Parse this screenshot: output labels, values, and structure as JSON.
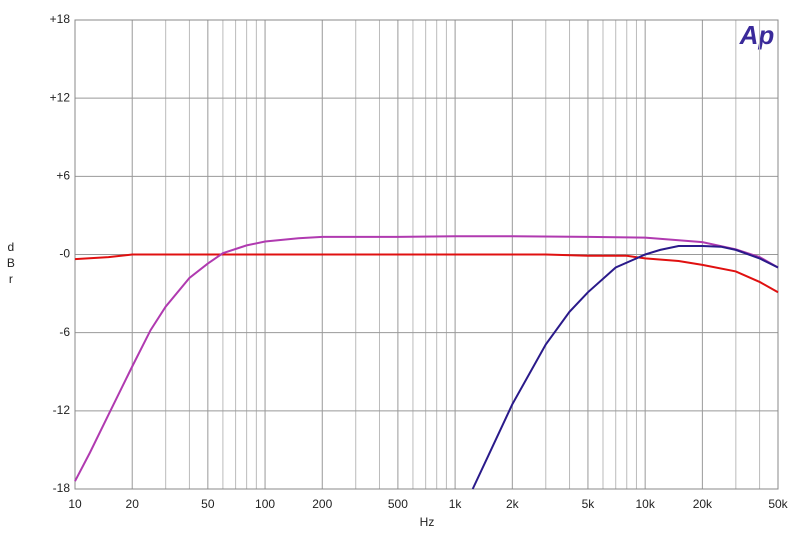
{
  "chart_data": {
    "type": "line",
    "logo": "Ap",
    "xlabel": "Hz",
    "ylabel": "dBr",
    "xlog": true,
    "grid": true,
    "xlim": [
      10,
      50000
    ],
    "ylim": [
      -18,
      18
    ],
    "xticks": [
      10,
      20,
      50,
      100,
      200,
      500,
      {
        "value": 1000,
        "label": "1k"
      },
      {
        "value": 2000,
        "label": "2k"
      },
      {
        "value": 5000,
        "label": "5k"
      },
      {
        "value": 10000,
        "label": "10k"
      },
      {
        "value": 20000,
        "label": "20k"
      },
      {
        "value": 50000,
        "label": "50k"
      }
    ],
    "x_minor_ticks": [
      30,
      40,
      60,
      70,
      80,
      90,
      300,
      400,
      600,
      700,
      800,
      900,
      3000,
      4000,
      6000,
      7000,
      8000,
      9000,
      30000,
      40000
    ],
    "yticks": [
      {
        "value": 18,
        "label": "+18"
      },
      {
        "value": 12,
        "label": "+12"
      },
      {
        "value": 6,
        "label": "+6"
      },
      {
        "value": 0,
        "label": "-0"
      },
      -6,
      -12,
      -18
    ],
    "series": [
      {
        "color": "#e01010",
        "x": [
          10,
          15,
          20,
          50,
          100,
          1000,
          3000,
          5000,
          8000,
          10000,
          15000,
          20000,
          30000,
          40000,
          50000
        ],
        "values": [
          -0.35,
          -0.2,
          0,
          0,
          0,
          0,
          0,
          -0.1,
          -0.1,
          -0.3,
          -0.5,
          -0.8,
          -1.3,
          -2.1,
          -2.9
        ]
      },
      {
        "color": "#b03ab0",
        "x": [
          10,
          12,
          15,
          20,
          25,
          30,
          40,
          50,
          60,
          80,
          100,
          150,
          200,
          500,
          1000,
          2000,
          5000,
          10000,
          15000,
          20000,
          30000,
          40000,
          50000
        ],
        "values": [
          -17.4,
          -15.2,
          -12.3,
          -8.6,
          -5.8,
          -4.0,
          -1.8,
          -0.7,
          0.1,
          0.7,
          1.0,
          1.25,
          1.35,
          1.35,
          1.4,
          1.4,
          1.35,
          1.3,
          1.1,
          0.95,
          0.4,
          -0.2,
          -1.0
        ]
      },
      {
        "color": "#2a1a8a",
        "x": [
          1238,
          1500,
          2000,
          3000,
          4000,
          5000,
          7000,
          10000,
          12000,
          15000,
          20000,
          25000,
          30000,
          40000,
          50000
        ],
        "values": [
          -18,
          -15.4,
          -11.5,
          -6.9,
          -4.4,
          -2.9,
          -1.0,
          0,
          0.35,
          0.65,
          0.65,
          0.6,
          0.35,
          -0.3,
          -1.0
        ]
      }
    ]
  }
}
